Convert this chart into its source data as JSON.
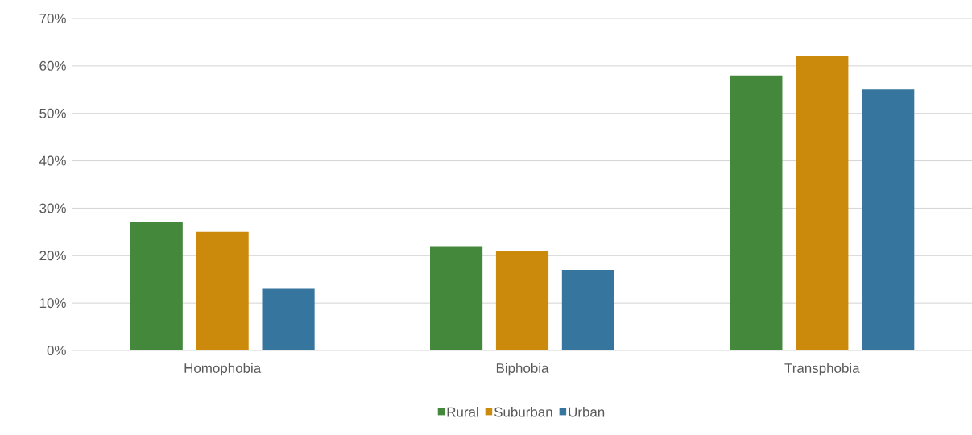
{
  "chart_data": {
    "type": "bar",
    "categories": [
      "Homophobia",
      "Biphobia",
      "Transphobia"
    ],
    "series": [
      {
        "name": "Rural",
        "color": "#43883b",
        "values": [
          27,
          22,
          58
        ]
      },
      {
        "name": "Suburban",
        "color": "#cc8a0c",
        "values": [
          25,
          21,
          62
        ]
      },
      {
        "name": "Urban",
        "color": "#36759e",
        "values": [
          13,
          17,
          55
        ]
      }
    ],
    "ylim": [
      0,
      70
    ],
    "yticks": [
      {
        "value": 0,
        "label": "0%"
      },
      {
        "value": 10,
        "label": "10%"
      },
      {
        "value": 20,
        "label": "20%"
      },
      {
        "value": 30,
        "label": "30%"
      },
      {
        "value": 40,
        "label": "40%"
      },
      {
        "value": 50,
        "label": "50%"
      },
      {
        "value": 60,
        "label": "60%"
      },
      {
        "value": 70,
        "label": "70%"
      }
    ],
    "grid": "y",
    "legend": "bottom"
  }
}
